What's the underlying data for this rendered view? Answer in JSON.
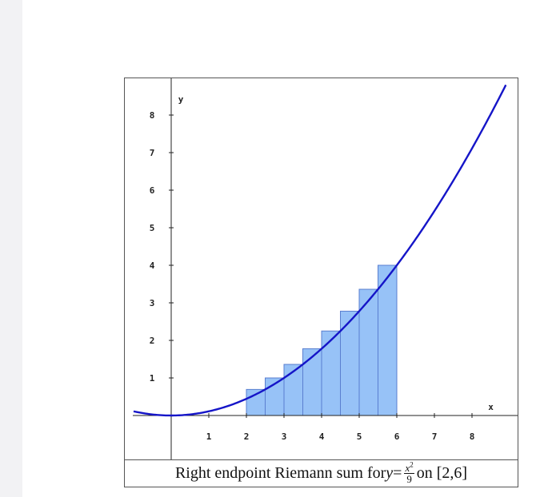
{
  "chart_data": {
    "type": "bar",
    "function": "y = x^2/9",
    "method": "right endpoint",
    "interval": [
      2,
      6
    ],
    "rectangles": [
      {
        "x_left": 2.0,
        "x_right": 2.5,
        "height": 0.694
      },
      {
        "x_left": 2.5,
        "x_right": 3.0,
        "height": 1.0
      },
      {
        "x_left": 3.0,
        "x_right": 3.5,
        "height": 1.361
      },
      {
        "x_left": 3.5,
        "x_right": 4.0,
        "height": 1.778
      },
      {
        "x_left": 4.0,
        "x_right": 4.5,
        "height": 2.25
      },
      {
        "x_left": 4.5,
        "x_right": 5.0,
        "height": 2.778
      },
      {
        "x_left": 5.0,
        "x_right": 5.5,
        "height": 3.361
      },
      {
        "x_left": 5.5,
        "x_right": 6.0,
        "height": 4.0
      }
    ],
    "xlim": [
      -1,
      8.9
    ],
    "ylim": [
      -0.4,
      9
    ],
    "x_ticks": [
      "1",
      "2",
      "3",
      "4",
      "5",
      "6",
      "7",
      "8"
    ],
    "y_ticks": [
      "1",
      "2",
      "3",
      "4",
      "5",
      "6",
      "7",
      "8"
    ],
    "xlabel": "x",
    "ylabel": "y",
    "colors": {
      "curve": "#1515c8",
      "bar_fill": "#97c2f7",
      "bar_stroke": "#5a7fd0",
      "axis": "#222222"
    }
  },
  "caption": {
    "prefix": "Right endpoint Riemann sum for ",
    "var": "y",
    "equals": " = ",
    "num_base": "x",
    "num_exp": "2",
    "den": "9",
    "suffix": " on [2,6]"
  }
}
